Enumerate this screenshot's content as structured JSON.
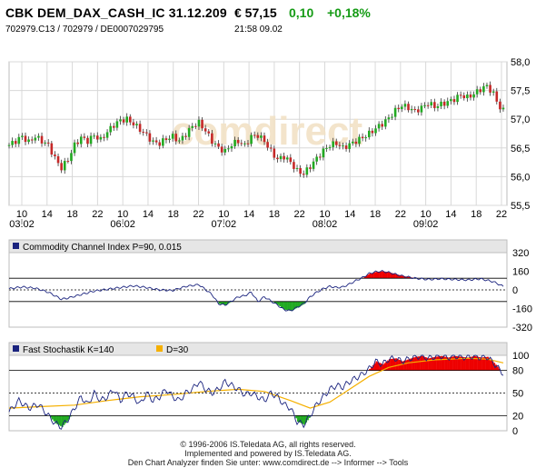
{
  "header": {
    "title": "CBK DEM_DAX_CASH_IC 31.12.209",
    "price": "€ 57,15",
    "change": "0,10",
    "change_pct": "+0,18%",
    "ids": "702979.C13  /  702979  /  DE0007029795",
    "time": "21:58   09.02",
    "change_color": "#159b15"
  },
  "watermark": "comdirect",
  "chart_data": [
    {
      "type": "candlestick",
      "name": "price",
      "y_ticks": [
        "58,0",
        "57,5",
        "57,0",
        "56,5",
        "56,0",
        "55,5"
      ],
      "ylim": [
        55.5,
        58.0
      ],
      "x_hour_ticks": [
        "10",
        "14",
        "18",
        "22",
        "10",
        "14",
        "18",
        "22",
        "10",
        "14",
        "18",
        "22",
        "10",
        "14",
        "18",
        "22",
        "10",
        "14",
        "18",
        "22"
      ],
      "x_date_ticks": [
        "03.02",
        "06.02",
        "07.02",
        "08.02",
        "09.02"
      ],
      "close_path": [
        [
          0,
          56.55
        ],
        [
          2,
          56.62
        ],
        [
          4,
          56.7
        ],
        [
          6,
          56.6
        ],
        [
          8,
          56.7
        ],
        [
          10,
          56.62
        ],
        [
          12,
          56.55
        ],
        [
          14,
          56.32
        ],
        [
          16,
          56.15
        ],
        [
          18,
          56.3
        ],
        [
          20,
          56.55
        ],
        [
          22,
          56.68
        ],
        [
          24,
          56.62
        ],
        [
          26,
          56.72
        ],
        [
          28,
          56.64
        ],
        [
          30,
          56.78
        ],
        [
          32,
          56.9
        ],
        [
          34,
          56.98
        ],
        [
          36,
          57.0
        ],
        [
          38,
          56.92
        ],
        [
          40,
          56.82
        ],
        [
          42,
          56.72
        ],
        [
          44,
          56.6
        ],
        [
          46,
          56.58
        ],
        [
          48,
          56.66
        ],
        [
          50,
          56.7
        ],
        [
          52,
          56.62
        ],
        [
          54,
          56.74
        ],
        [
          56,
          56.88
        ],
        [
          58,
          56.94
        ],
        [
          60,
          56.8
        ],
        [
          62,
          56.62
        ],
        [
          64,
          56.5
        ],
        [
          66,
          56.44
        ],
        [
          68,
          56.56
        ],
        [
          70,
          56.62
        ],
        [
          72,
          56.54
        ],
        [
          74,
          56.7
        ],
        [
          76,
          56.72
        ],
        [
          78,
          56.62
        ],
        [
          80,
          56.44
        ],
        [
          82,
          56.3
        ],
        [
          84,
          56.35
        ],
        [
          86,
          56.25
        ],
        [
          88,
          56.1
        ],
        [
          90,
          56.05
        ],
        [
          92,
          56.18
        ],
        [
          94,
          56.32
        ],
        [
          96,
          56.45
        ],
        [
          98,
          56.55
        ],
        [
          100,
          56.58
        ],
        [
          102,
          56.5
        ],
        [
          104,
          56.56
        ],
        [
          106,
          56.62
        ],
        [
          108,
          56.68
        ],
        [
          110,
          56.75
        ],
        [
          112,
          56.84
        ],
        [
          114,
          56.92
        ],
        [
          116,
          57.02
        ],
        [
          118,
          57.15
        ],
        [
          120,
          57.24
        ],
        [
          122,
          57.2
        ],
        [
          124,
          57.14
        ],
        [
          126,
          57.2
        ],
        [
          128,
          57.28
        ],
        [
          130,
          57.22
        ],
        [
          132,
          57.26
        ],
        [
          134,
          57.3
        ],
        [
          136,
          57.35
        ],
        [
          138,
          57.42
        ],
        [
          140,
          57.38
        ],
        [
          142,
          57.44
        ],
        [
          144,
          57.52
        ],
        [
          146,
          57.58
        ],
        [
          148,
          57.44
        ],
        [
          150,
          57.2
        ],
        [
          151,
          57.15
        ]
      ],
      "x_range": [
        0,
        151
      ]
    },
    {
      "type": "line",
      "name": "cci",
      "label": "Commodity Channel Index P=90, 0.015",
      "y_ticks": [
        "320",
        "160",
        "0",
        "-160",
        "-320"
      ],
      "ylim": [
        -320,
        320
      ],
      "ref_lines": [
        100,
        -100
      ],
      "line_color": "#1a237e",
      "pos_fill": "#ee0000",
      "neg_fill": "#22aa22",
      "x_range": [
        0,
        151
      ],
      "values": [
        [
          0,
          10
        ],
        [
          4,
          25
        ],
        [
          8,
          15
        ],
        [
          12,
          -20
        ],
        [
          16,
          -80
        ],
        [
          18,
          -70
        ],
        [
          22,
          -40
        ],
        [
          26,
          -10
        ],
        [
          30,
          5
        ],
        [
          34,
          20
        ],
        [
          38,
          35
        ],
        [
          42,
          20
        ],
        [
          46,
          0
        ],
        [
          50,
          -5
        ],
        [
          54,
          30
        ],
        [
          58,
          45
        ],
        [
          62,
          -40
        ],
        [
          64,
          -120
        ],
        [
          66,
          -130
        ],
        [
          68,
          -95
        ],
        [
          70,
          -60
        ],
        [
          72,
          -50
        ],
        [
          74,
          -20
        ],
        [
          76,
          -100
        ],
        [
          78,
          -60
        ],
        [
          80,
          -95
        ],
        [
          82,
          -130
        ],
        [
          84,
          -170
        ],
        [
          86,
          -180
        ],
        [
          88,
          -150
        ],
        [
          90,
          -120
        ],
        [
          92,
          -60
        ],
        [
          94,
          -20
        ],
        [
          96,
          10
        ],
        [
          98,
          30
        ],
        [
          100,
          20
        ],
        [
          102,
          25
        ],
        [
          104,
          50
        ],
        [
          106,
          80
        ],
        [
          108,
          105
        ],
        [
          110,
          140
        ],
        [
          112,
          155
        ],
        [
          114,
          160
        ],
        [
          116,
          150
        ],
        [
          118,
          135
        ],
        [
          120,
          120
        ],
        [
          124,
          100
        ],
        [
          128,
          90
        ],
        [
          132,
          95
        ],
        [
          136,
          90
        ],
        [
          140,
          85
        ],
        [
          144,
          95
        ],
        [
          148,
          70
        ],
        [
          151,
          30
        ]
      ]
    },
    {
      "type": "line",
      "name": "stochastic",
      "label_k": "Fast Stochastik K=140",
      "label_d": "D=30",
      "y_ticks": [
        "100",
        "80",
        "50",
        "20",
        "0"
      ],
      "ylim": [
        0,
        100
      ],
      "ref_lines": [
        80,
        20
      ],
      "k_color": "#1a237e",
      "d_color": "#f5b000",
      "hi_fill": "#ee0000",
      "lo_fill": "#22aa22",
      "x_range": [
        0,
        151
      ],
      "k_values": [
        [
          0,
          25
        ],
        [
          3,
          40
        ],
        [
          6,
          30
        ],
        [
          9,
          35
        ],
        [
          12,
          20
        ],
        [
          14,
          10
        ],
        [
          16,
          5
        ],
        [
          18,
          15
        ],
        [
          20,
          30
        ],
        [
          22,
          45
        ],
        [
          24,
          35
        ],
        [
          26,
          50
        ],
        [
          28,
          40
        ],
        [
          30,
          45
        ],
        [
          32,
          55
        ],
        [
          34,
          40
        ],
        [
          36,
          50
        ],
        [
          38,
          45
        ],
        [
          40,
          35
        ],
        [
          42,
          50
        ],
        [
          44,
          40
        ],
        [
          46,
          45
        ],
        [
          48,
          55
        ],
        [
          50,
          45
        ],
        [
          52,
          40
        ],
        [
          54,
          50
        ],
        [
          56,
          55
        ],
        [
          58,
          65
        ],
        [
          60,
          55
        ],
        [
          62,
          50
        ],
        [
          64,
          55
        ],
        [
          66,
          65
        ],
        [
          68,
          60
        ],
        [
          70,
          55
        ],
        [
          72,
          48
        ],
        [
          74,
          50
        ],
        [
          76,
          45
        ],
        [
          78,
          40
        ],
        [
          80,
          50
        ],
        [
          82,
          45
        ],
        [
          84,
          35
        ],
        [
          86,
          30
        ],
        [
          88,
          12
        ],
        [
          90,
          8
        ],
        [
          92,
          20
        ],
        [
          94,
          35
        ],
        [
          96,
          45
        ],
        [
          98,
          55
        ],
        [
          100,
          60
        ],
        [
          102,
          58
        ],
        [
          104,
          65
        ],
        [
          106,
          70
        ],
        [
          108,
          75
        ],
        [
          110,
          82
        ],
        [
          112,
          92
        ],
        [
          114,
          88
        ],
        [
          116,
          95
        ],
        [
          118,
          96
        ],
        [
          120,
          92
        ],
        [
          122,
          95
        ],
        [
          124,
          98
        ],
        [
          126,
          99
        ],
        [
          128,
          96
        ],
        [
          130,
          98
        ],
        [
          132,
          99
        ],
        [
          134,
          97
        ],
        [
          136,
          99
        ],
        [
          138,
          98
        ],
        [
          140,
          97
        ],
        [
          142,
          99
        ],
        [
          144,
          97
        ],
        [
          146,
          98
        ],
        [
          148,
          90
        ],
        [
          150,
          80
        ],
        [
          151,
          76
        ]
      ],
      "d_values": [
        [
          0,
          30
        ],
        [
          10,
          32
        ],
        [
          20,
          34
        ],
        [
          30,
          40
        ],
        [
          40,
          45
        ],
        [
          50,
          48
        ],
        [
          60,
          52
        ],
        [
          70,
          55
        ],
        [
          78,
          52
        ],
        [
          86,
          40
        ],
        [
          92,
          30
        ],
        [
          98,
          38
        ],
        [
          104,
          55
        ],
        [
          110,
          72
        ],
        [
          116,
          84
        ],
        [
          122,
          90
        ],
        [
          130,
          94
        ],
        [
          140,
          96
        ],
        [
          146,
          95
        ],
        [
          151,
          90
        ]
      ]
    }
  ],
  "footer": {
    "line1": "© 1996-2006 IS.Teledata AG, all rights reserved.",
    "line2": "Implemented and powered by IS.Teledata AG.",
    "line3": "Den Chart Analyzer finden Sie unter: www.comdirect.de --> Informer --> Tools"
  }
}
